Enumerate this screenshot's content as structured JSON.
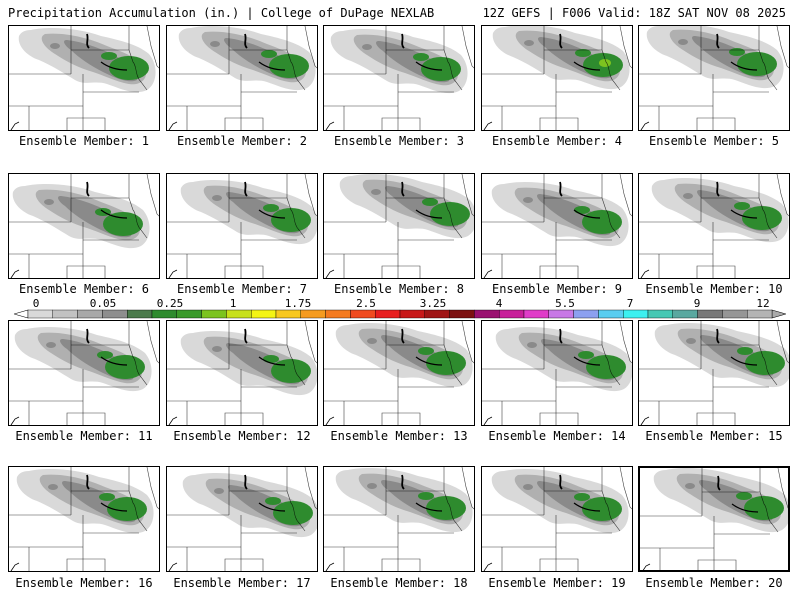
{
  "header": {
    "left_title": "Precipitation Accumulation (in.) | College of DuPage NEXLAB",
    "right_title": "12Z GEFS | F006 Valid: 18Z SAT NOV 08 2025"
  },
  "colors": {
    "background": "#ffffff",
    "state_lines": "#000000",
    "shade_light": "#d9d9d9",
    "shade_mid": "#b0b0b0",
    "shade_dark": "#8a8a8a",
    "green_dark": "#2e8b2e",
    "green_light": "#7cc31f"
  },
  "colorbar": {
    "tick_labels": [
      "0",
      "0.05",
      "0.25",
      "1",
      "1.75",
      "2.5",
      "3.25",
      "4",
      "5.5",
      "7",
      "9",
      "12"
    ],
    "colors": [
      "#d9d9d9",
      "#c2c2c2",
      "#a8a8a8",
      "#8e8e8e",
      "#4b7a4b",
      "#2e8b2e",
      "#3a9a2a",
      "#7cc31f",
      "#c8e01a",
      "#f4f414",
      "#f8c81e",
      "#f59b1e",
      "#f47a1e",
      "#f04a1e",
      "#e81e1e",
      "#c81818",
      "#a01414",
      "#7c1010",
      "#9a1070",
      "#c81e9a",
      "#e03cc8",
      "#c878e6",
      "#8ca0f0",
      "#5acdf0",
      "#3cf0f0",
      "#46c8b4",
      "#5aa8a0",
      "#787878",
      "#969696",
      "#b4b4b4"
    ]
  },
  "members": [
    {
      "label": "Ensemble Member: 1",
      "selected": false,
      "max_band": 2
    },
    {
      "label": "Ensemble Member: 2",
      "selected": false,
      "max_band": 2
    },
    {
      "label": "Ensemble Member: 3",
      "selected": false,
      "max_band": 2
    },
    {
      "label": "Ensemble Member: 4",
      "selected": false,
      "max_band": 3
    },
    {
      "label": "Ensemble Member: 5",
      "selected": false,
      "max_band": 2
    },
    {
      "label": "Ensemble Member: 6",
      "selected": false,
      "max_band": 2
    },
    {
      "label": "Ensemble Member: 7",
      "selected": false,
      "max_band": 2
    },
    {
      "label": "Ensemble Member: 8",
      "selected": false,
      "max_band": 2
    },
    {
      "label": "Ensemble Member: 9",
      "selected": false,
      "max_band": 2
    },
    {
      "label": "Ensemble Member: 10",
      "selected": false,
      "max_band": 2
    },
    {
      "label": "Ensemble Member: 11",
      "selected": false,
      "max_band": 2
    },
    {
      "label": "Ensemble Member: 12",
      "selected": false,
      "max_band": 2
    },
    {
      "label": "Ensemble Member: 13",
      "selected": false,
      "max_band": 2
    },
    {
      "label": "Ensemble Member: 14",
      "selected": false,
      "max_band": 2
    },
    {
      "label": "Ensemble Member: 15",
      "selected": false,
      "max_band": 2
    },
    {
      "label": "Ensemble Member: 16",
      "selected": false,
      "max_band": 2
    },
    {
      "label": "Ensemble Member: 17",
      "selected": false,
      "max_band": 2
    },
    {
      "label": "Ensemble Member: 18",
      "selected": false,
      "max_band": 2
    },
    {
      "label": "Ensemble Member: 19",
      "selected": false,
      "max_band": 2
    },
    {
      "label": "Ensemble Member: 20",
      "selected": true,
      "max_band": 2
    }
  ]
}
